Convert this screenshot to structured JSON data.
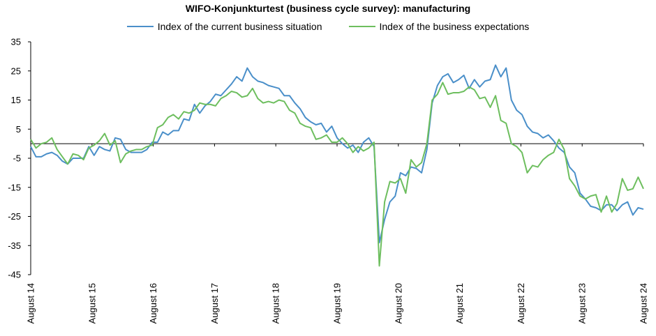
{
  "chart_data": {
    "type": "line",
    "title": "WIFO-Konjunkturtest (business cycle survey): manufacturing",
    "xlabel": "",
    "ylabel": "",
    "ylim": [
      -45,
      35
    ],
    "yticks": [
      35,
      25,
      15,
      5,
      -5,
      -15,
      -25,
      -35,
      -45
    ],
    "xticks": [
      "August 14",
      "August 15",
      "August 16",
      "August 17",
      "August 18",
      "August 19",
      "August 20",
      "August 21",
      "August 22",
      "August 23",
      "August 24"
    ],
    "x_start": "2014-08",
    "x_end": "2024-08",
    "grid": false,
    "legend": "top",
    "series": [
      {
        "name": "Index of the current business situation",
        "color": "#4A8FC9",
        "values": [
          -1.0,
          -4.5,
          -4.5,
          -3.5,
          -3.0,
          -4.0,
          -6.0,
          -7.0,
          -5.0,
          -5.0,
          -5.0,
          -1.0,
          -4.0,
          -1.0,
          -2.0,
          -2.5,
          2.0,
          1.5,
          -2.0,
          -3.0,
          -3.0,
          -3.0,
          -2.0,
          0.5,
          0.5,
          4.0,
          3.0,
          4.5,
          4.5,
          8.5,
          8.0,
          13.5,
          10.5,
          13.0,
          14.5,
          17.0,
          16.5,
          18.5,
          20.5,
          23.0,
          21.5,
          26.0,
          23.0,
          21.5,
          21.0,
          20.0,
          19.5,
          19.0,
          16.5,
          16.5,
          14.0,
          12.0,
          9.0,
          7.5,
          6.5,
          7.0,
          4.0,
          6.0,
          2.0,
          0.0,
          -1.5,
          -0.5,
          -3.0,
          0.5,
          2.0,
          -1.0,
          -34.0,
          -26.0,
          -20.0,
          -18.0,
          -10.0,
          -11.0,
          -8.0,
          -8.5,
          -10.0,
          -2.0,
          14.0,
          20.0,
          23.0,
          24.0,
          21.0,
          22.0,
          23.5,
          19.0,
          22.0,
          19.5,
          21.5,
          22.0,
          27.0,
          23.0,
          26.0,
          15.0,
          11.5,
          10.0,
          6.0,
          4.0,
          3.5,
          2.0,
          3.0,
          1.0,
          -1.5,
          -3.0,
          -8.0,
          -10.0,
          -17.0,
          -19.0,
          -21.5,
          -22.0,
          -23.0,
          -21.0,
          -21.0,
          -23.0,
          -21.0,
          -20.0,
          -24.5,
          -22.0,
          -22.5
        ]
      },
      {
        "name": "Index of the business expectations",
        "color": "#6DBE5E",
        "values": [
          1.5,
          -1.5,
          0.0,
          0.5,
          2.0,
          -2.0,
          -4.5,
          -7.0,
          -3.5,
          -4.0,
          -5.5,
          -1.5,
          -0.5,
          1.0,
          3.5,
          -0.5,
          1.0,
          -6.5,
          -3.5,
          -2.5,
          -2.0,
          -2.0,
          -1.0,
          -0.5,
          5.5,
          6.5,
          9.0,
          10.0,
          8.5,
          11.0,
          10.5,
          11.5,
          14.0,
          13.5,
          13.5,
          13.0,
          15.5,
          16.5,
          18.0,
          17.5,
          16.0,
          16.5,
          19.0,
          15.5,
          14.0,
          14.5,
          14.0,
          15.0,
          14.5,
          11.5,
          10.5,
          7.0,
          6.0,
          5.5,
          1.5,
          2.0,
          3.0,
          0.5,
          0.5,
          2.0,
          0.0,
          -3.0,
          -1.0,
          -2.5,
          -1.5,
          0.5,
          -42.0,
          -20.0,
          -13.0,
          -13.5,
          -12.0,
          -17.0,
          -5.5,
          -8.0,
          -6.5,
          0.0,
          15.0,
          17.0,
          21.0,
          17.0,
          17.5,
          17.5,
          18.0,
          19.5,
          18.5,
          15.5,
          16.0,
          12.5,
          16.5,
          8.0,
          7.0,
          0.0,
          -1.0,
          -3.0,
          -10.0,
          -7.5,
          -8.0,
          -5.5,
          -4.0,
          -3.0,
          1.5,
          -2.0,
          -12.0,
          -14.5,
          -18.0,
          -19.0,
          -18.0,
          -17.5,
          -23.5,
          -18.0,
          -23.5,
          -20.5,
          -12.0,
          -16.0,
          -15.5,
          -11.5,
          -15.5
        ]
      }
    ]
  }
}
